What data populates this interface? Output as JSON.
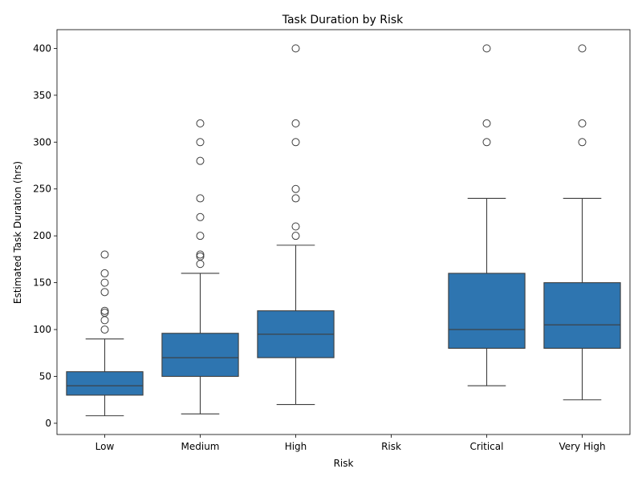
{
  "chart_data": {
    "type": "box",
    "title": "Task Duration by Risk",
    "xlabel": "Risk",
    "ylabel": "Estimated Task Duration (hrs)",
    "ylim": [
      -12,
      420
    ],
    "yticks": [
      0,
      50,
      100,
      150,
      200,
      250,
      300,
      350,
      400
    ],
    "grid": false,
    "box_color": "#2e75b0",
    "categories": [
      "Low",
      "Medium",
      "High",
      "Risk",
      "Critical",
      "Very High"
    ],
    "boxes": [
      {
        "category": "Low",
        "whisker_low": 8,
        "q1": 30,
        "median": 40,
        "q3": 55,
        "whisker_high": 90,
        "outliers": [
          100,
          110,
          118,
          120,
          140,
          150,
          160,
          180
        ]
      },
      {
        "category": "Medium",
        "whisker_low": 10,
        "q1": 50,
        "median": 70,
        "q3": 96,
        "whisker_high": 160,
        "outliers": [
          170,
          178,
          180,
          200,
          220,
          240,
          280,
          300,
          320
        ]
      },
      {
        "category": "High",
        "whisker_low": 20,
        "q1": 70,
        "median": 95,
        "q3": 120,
        "whisker_high": 190,
        "outliers": [
          200,
          210,
          240,
          250,
          300,
          320,
          400
        ]
      },
      {
        "category": "Risk",
        "empty": true
      },
      {
        "category": "Critical",
        "whisker_low": 40,
        "q1": 80,
        "median": 100,
        "q3": 160,
        "whisker_high": 240,
        "outliers": [
          300,
          320,
          400
        ]
      },
      {
        "category": "Very High",
        "whisker_low": 25,
        "q1": 80,
        "median": 105,
        "q3": 150,
        "whisker_high": 240,
        "outliers": [
          300,
          320,
          400
        ]
      }
    ]
  }
}
